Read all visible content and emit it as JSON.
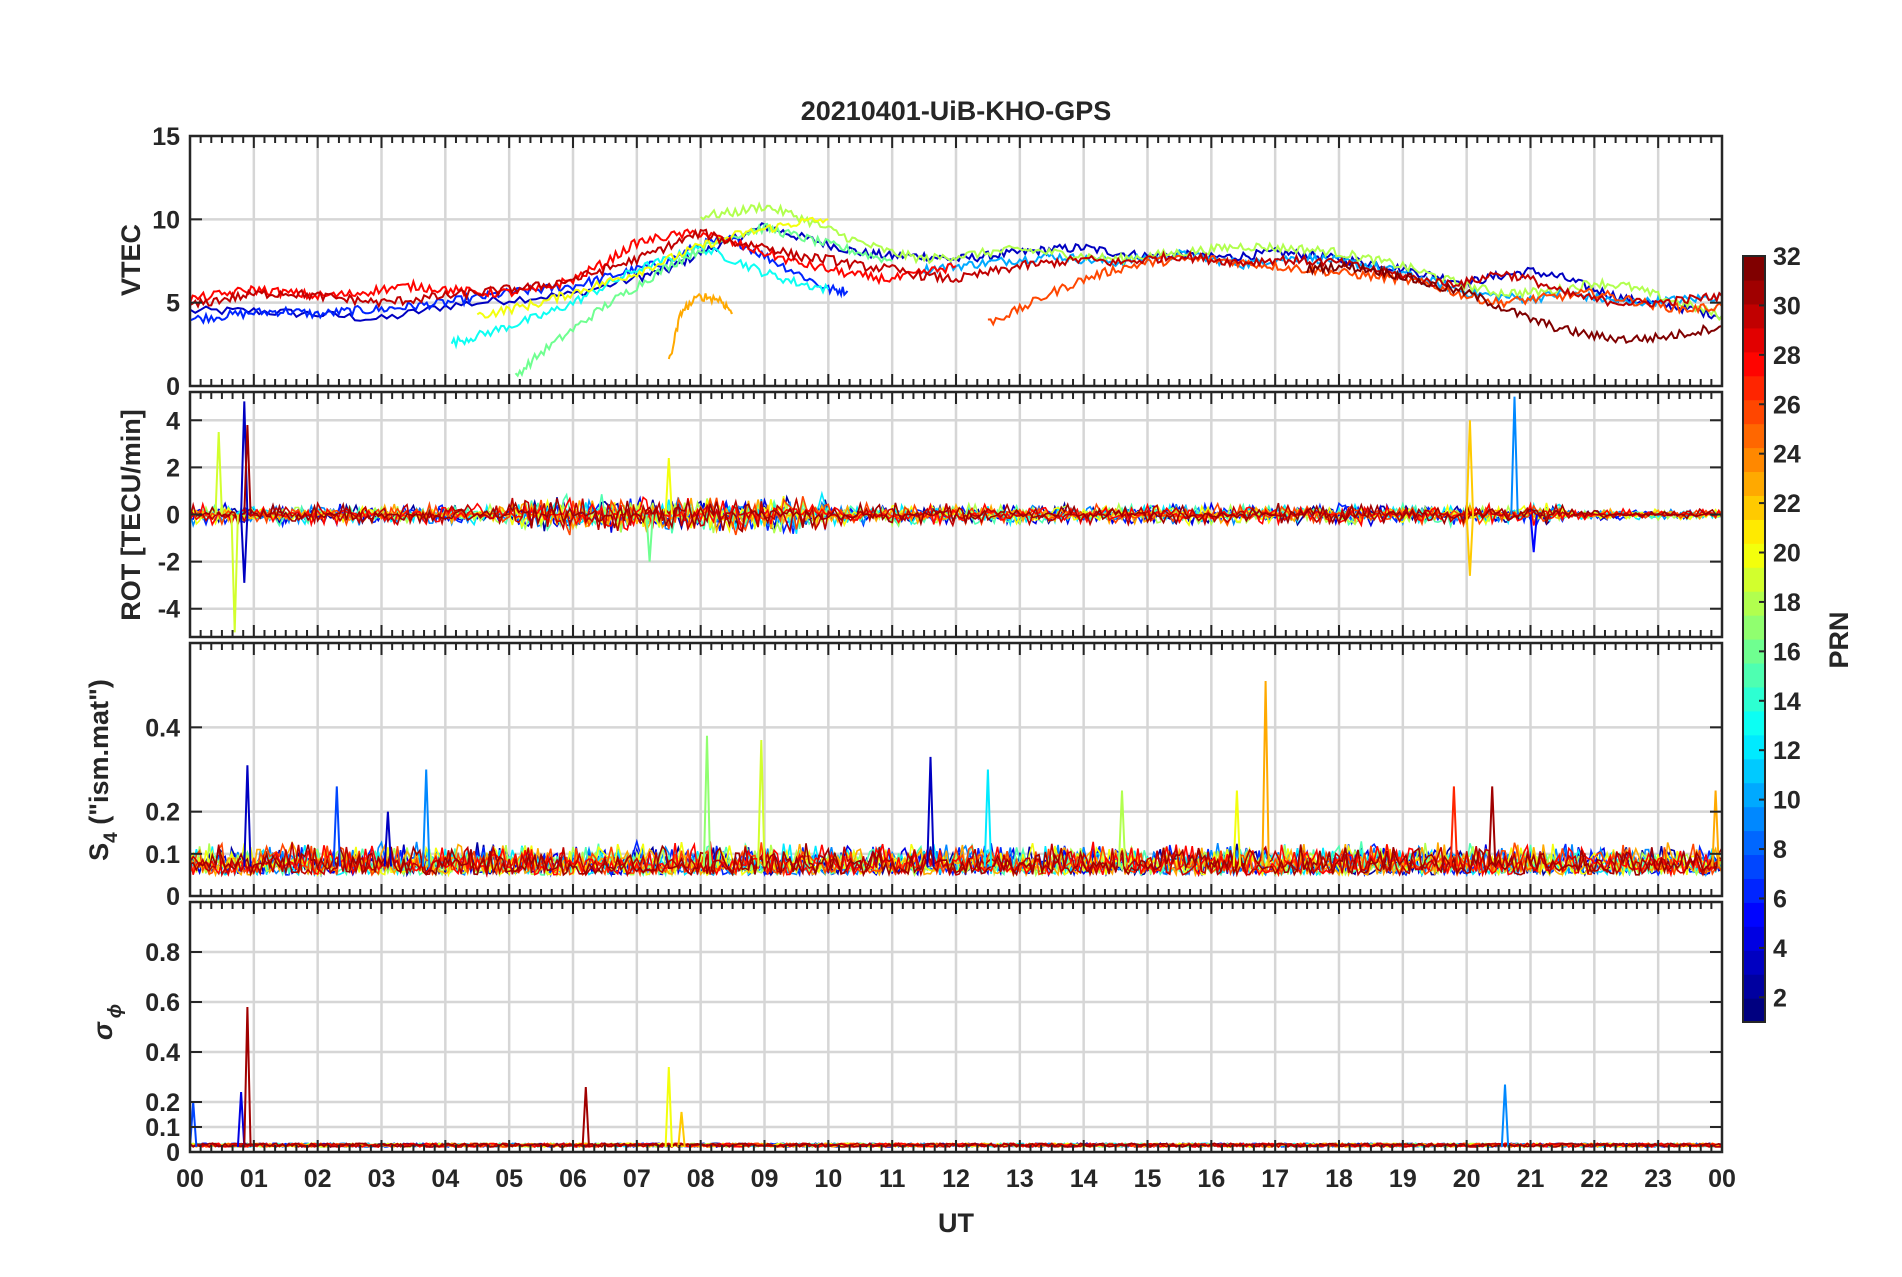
{
  "title": "20210401-UiB-KHO-GPS",
  "x_axis": {
    "label": "UT",
    "tick_labels": [
      "00",
      "01",
      "02",
      "03",
      "04",
      "05",
      "06",
      "07",
      "08",
      "09",
      "10",
      "11",
      "12",
      "13",
      "14",
      "15",
      "16",
      "17",
      "18",
      "19",
      "20",
      "21",
      "22",
      "23",
      "00"
    ]
  },
  "colorbar": {
    "label": "PRN",
    "range": [
      1,
      32
    ],
    "tick_labels": [
      "2",
      "4",
      "6",
      "8",
      "10",
      "12",
      "14",
      "16",
      "18",
      "20",
      "22",
      "24",
      "26",
      "28",
      "30",
      "32"
    ],
    "colormap": "jet"
  },
  "panels": {
    "vtec": {
      "ylabel": "VTEC",
      "ylim": [
        0,
        15
      ],
      "ticks": [
        "0",
        "5",
        "10",
        "15"
      ]
    },
    "rot": {
      "ylabel": "ROT [TECU/min]",
      "ylim": [
        -5.2,
        5.2
      ],
      "ticks": [
        "-4",
        "-2",
        "0",
        "2",
        "4"
      ]
    },
    "s4": {
      "ylabel_main": "S",
      "ylabel_sub": "4",
      "ylabel_rest": " (\"ism.mat\")",
      "ylim": [
        0,
        0.6
      ],
      "ticks": [
        "0",
        "0.1",
        "0.2",
        "0.4"
      ]
    },
    "sigma": {
      "ylabel_main": "σ",
      "ylabel_sub": "ϕ",
      "ylim": [
        0,
        1
      ],
      "ticks": [
        "0",
        "0.1",
        "0.2",
        "0.4",
        "0.6",
        "0.8"
      ]
    }
  },
  "chart_data": [
    {
      "type": "line",
      "title": "20210401-UiB-KHO-GPS",
      "ylabel": "VTEC",
      "xlabel": "UT",
      "xlim": [
        0,
        24
      ],
      "ylim": [
        0,
        15
      ],
      "grid": true,
      "color_by": "PRN",
      "series": [
        {
          "prn": 3,
          "x": [
            0,
            1,
            2,
            3,
            4,
            5,
            6,
            7,
            7.5,
            8,
            8.5,
            9,
            9.5,
            10,
            10.5,
            11,
            11.5,
            12,
            12.5,
            13,
            13.5,
            14,
            14.5,
            15,
            15.5,
            16,
            16.5,
            17,
            17.5,
            18,
            18.5,
            19,
            19.5,
            20,
            20.5,
            21,
            21.5,
            22,
            22.5,
            23,
            23.5,
            24
          ],
          "y": [
            4.5,
            4.5,
            4.3,
            4.0,
            4.8,
            5.2,
            5.5,
            6.5,
            7.0,
            8.0,
            8.8,
            9.6,
            9.0,
            8.5,
            8.0,
            7.8,
            7.8,
            7.6,
            7.8,
            8.0,
            8.2,
            8.3,
            8.0,
            7.8,
            7.9,
            7.7,
            7.8,
            8.0,
            7.9,
            7.6,
            7.4,
            7.0,
            6.6,
            6.2,
            6.6,
            6.9,
            6.5,
            5.8,
            5.2,
            4.9,
            4.6,
            4.2
          ]
        },
        {
          "prn": 6,
          "x": [
            0,
            0.5,
            1,
            1.5,
            2,
            2.5,
            3,
            3.5,
            4,
            4.5,
            5,
            5.5,
            6,
            6.5,
            7,
            7.5,
            8,
            8.5,
            9,
            9.5,
            10,
            10.3
          ],
          "y": [
            4.0,
            4.2,
            4.4,
            4.5,
            4.3,
            4.5,
            4.6,
            4.8,
            5.0,
            5.3,
            5.6,
            5.8,
            6.0,
            6.5,
            7.0,
            7.5,
            8.5,
            8.8,
            7.8,
            6.8,
            5.8,
            5.7
          ]
        },
        {
          "prn": 10,
          "x": [
            11.5,
            12,
            12.5,
            13,
            13.5,
            14,
            14.5,
            15,
            15.5,
            16,
            16.5,
            17,
            17.5,
            18,
            18.5,
            19,
            19.5,
            20,
            20.5,
            21,
            21.5,
            22,
            22.5,
            23,
            23.5,
            24
          ],
          "y": [
            7.0,
            7.2,
            7.4,
            7.6,
            7.8,
            7.6,
            7.4,
            7.7,
            7.9,
            7.6,
            7.3,
            7.6,
            7.7,
            7.5,
            7.2,
            6.8,
            6.2,
            5.6,
            5.4,
            5.2,
            5.6,
            5.3,
            5.0,
            5.1,
            5.2,
            5.4
          ]
        },
        {
          "prn": 13,
          "x": [
            4.1,
            4.5,
            5,
            5.5,
            6,
            6.5,
            7,
            7.5,
            8,
            8.5,
            9,
            9.5,
            10
          ],
          "y": [
            2.6,
            3.0,
            3.6,
            4.2,
            5.0,
            6.0,
            7.0,
            7.6,
            8.3,
            7.6,
            6.8,
            6.2,
            5.8
          ]
        },
        {
          "prn": 16,
          "x": [
            5.1,
            5.5,
            6,
            6.5,
            7,
            7.5,
            8,
            8.5,
            9,
            9.5,
            10,
            10.5,
            11
          ],
          "y": [
            0.6,
            2.0,
            3.4,
            4.8,
            6.0,
            7.2,
            8.2,
            9.0,
            9.5,
            9.0,
            8.5,
            8.0,
            7.5
          ]
        },
        {
          "prn": 18,
          "x": [
            8,
            8.5,
            9,
            9.5,
            10,
            10.5,
            11,
            11.5,
            12,
            12.5,
            13,
            13.5,
            14,
            14.5,
            15,
            15.5,
            16,
            16.5,
            17,
            17.5,
            18,
            18.5,
            19,
            19.5,
            20,
            20.5,
            21,
            21.5,
            22,
            22.5,
            23,
            23.5,
            24
          ],
          "y": [
            10.2,
            10.4,
            10.8,
            10.2,
            9.4,
            8.6,
            8.0,
            7.6,
            7.8,
            8.0,
            8.2,
            8.0,
            7.8,
            7.6,
            7.8,
            8.0,
            8.2,
            8.4,
            8.3,
            8.2,
            8.0,
            7.6,
            7.2,
            6.6,
            6.0,
            5.6,
            5.6,
            5.8,
            6.2,
            6.0,
            5.4,
            4.8,
            4.2
          ]
        },
        {
          "prn": 20,
          "x": [
            4.5,
            5,
            5.5,
            6,
            6.5,
            7,
            7.5,
            8,
            8.5,
            9,
            9.5,
            10
          ],
          "y": [
            4.2,
            4.6,
            5.0,
            5.6,
            6.2,
            6.8,
            7.6,
            8.4,
            9.0,
            9.4,
            9.8,
            10.0
          ]
        },
        {
          "prn": 23,
          "x": [
            7.5,
            7.7,
            8,
            8.3,
            8.5
          ],
          "y": [
            1.4,
            4.5,
            5.4,
            5.2,
            4.4
          ]
        },
        {
          "prn": 26,
          "x": [
            12.5,
            13,
            13.5,
            14,
            14.5,
            15,
            15.5,
            16,
            16.5,
            17,
            17.5,
            18,
            18.5,
            19,
            19.5,
            20,
            20.5,
            21,
            21.5,
            22,
            22.5,
            23,
            23.5,
            24
          ],
          "y": [
            3.8,
            4.6,
            5.6,
            6.4,
            7.0,
            7.4,
            7.6,
            7.6,
            7.4,
            7.2,
            7.0,
            6.8,
            6.6,
            6.4,
            6.0,
            5.4,
            5.0,
            5.2,
            5.4,
            5.6,
            5.2,
            4.8,
            4.6,
            4.8
          ]
        },
        {
          "prn": 28,
          "x": [
            0,
            0.5,
            1,
            1.5,
            2,
            2.5,
            3,
            3.5,
            4,
            4.5,
            5,
            5.5,
            6,
            6.5,
            7,
            7.5,
            8,
            8.5,
            9,
            9.5,
            10,
            10.5,
            11,
            11.5,
            12
          ],
          "y": [
            5.2,
            5.5,
            5.8,
            5.6,
            5.4,
            5.5,
            5.8,
            6.0,
            5.8,
            5.6,
            5.6,
            5.8,
            6.4,
            7.4,
            8.6,
            9.0,
            9.2,
            8.6,
            8.0,
            7.4,
            7.0,
            6.6,
            6.4,
            6.8,
            7.2
          ]
        },
        {
          "prn": 30,
          "x": [
            0,
            0.5,
            1,
            1.5,
            2,
            2.5,
            3,
            3.5,
            4,
            4.5,
            5,
            5.5,
            6,
            6.5,
            7,
            7.5,
            8,
            8.5,
            9,
            9.5,
            10,
            10.5,
            11,
            11.5,
            12,
            12.5,
            13,
            13.5,
            14,
            14.5,
            15,
            15.5,
            16,
            16.5,
            17,
            17.5,
            18,
            18.5,
            19,
            19.5,
            20,
            20.5,
            21,
            21.5,
            22,
            22.5,
            23,
            23.5,
            24
          ],
          "y": [
            4.8,
            5.2,
            5.5,
            5.6,
            5.4,
            5.2,
            5.0,
            5.2,
            5.4,
            5.6,
            5.8,
            6.0,
            6.4,
            7.0,
            7.6,
            8.4,
            9.2,
            8.6,
            8.4,
            7.8,
            7.6,
            7.2,
            7.0,
            6.6,
            6.4,
            6.8,
            7.2,
            7.4,
            7.6,
            7.4,
            7.6,
            7.8,
            7.6,
            7.4,
            7.6,
            7.5,
            7.4,
            7.0,
            6.6,
            6.2,
            6.2,
            6.8,
            6.4,
            5.6,
            5.2,
            5.0,
            5.0,
            5.2,
            5.4
          ]
        },
        {
          "prn": 32,
          "x": [
            17.5,
            18,
            18.5,
            19,
            19.5,
            20,
            20.5,
            21,
            21.5,
            22,
            22.5,
            23,
            23.5,
            24
          ],
          "y": [
            7.0,
            7.2,
            7.0,
            6.6,
            6.0,
            5.6,
            4.8,
            4.0,
            3.4,
            3.0,
            2.8,
            2.9,
            3.2,
            3.6
          ]
        }
      ]
    },
    {
      "type": "line",
      "ylabel": "ROT [TECU/min]",
      "xlim": [
        0,
        24
      ],
      "ylim": [
        -5.2,
        5.2
      ],
      "grid": true,
      "color_by": "PRN",
      "baseline": 0,
      "typical_amplitude": 0.5,
      "peaks": [
        {
          "x": 0.7,
          "y": -5.0,
          "prn": 19
        },
        {
          "x": 0.85,
          "y": 4.8,
          "prn": 3
        },
        {
          "x": 0.85,
          "y": -2.9,
          "prn": 3
        },
        {
          "x": 0.9,
          "y": 3.8,
          "prn": 31
        },
        {
          "x": 0.45,
          "y": 3.5,
          "prn": 19
        },
        {
          "x": 7.5,
          "y": 2.4,
          "prn": 20
        },
        {
          "x": 7.2,
          "y": -2.0,
          "prn": 16
        },
        {
          "x": 20.05,
          "y": 4.0,
          "prn": 22
        },
        {
          "x": 20.05,
          "y": -2.6,
          "prn": 22
        },
        {
          "x": 20.75,
          "y": 5.0,
          "prn": 9
        },
        {
          "x": 21.05,
          "y": -1.6,
          "prn": 5
        }
      ]
    },
    {
      "type": "line",
      "ylabel": "S4 (\"ism.mat\")",
      "xlim": [
        0,
        24
      ],
      "ylim": [
        0,
        0.6
      ],
      "grid": true,
      "color_by": "PRN",
      "baseline": 0.07,
      "peaks": [
        {
          "x": 0.9,
          "y": 0.31,
          "prn": 3
        },
        {
          "x": 2.3,
          "y": 0.26,
          "prn": 7
        },
        {
          "x": 3.1,
          "y": 0.2,
          "prn": 3
        },
        {
          "x": 3.7,
          "y": 0.3,
          "prn": 9
        },
        {
          "x": 8.1,
          "y": 0.38,
          "prn": 17
        },
        {
          "x": 8.95,
          "y": 0.37,
          "prn": 19
        },
        {
          "x": 11.6,
          "y": 0.33,
          "prn": 3
        },
        {
          "x": 12.5,
          "y": 0.3,
          "prn": 12
        },
        {
          "x": 14.6,
          "y": 0.25,
          "prn": 18
        },
        {
          "x": 16.4,
          "y": 0.25,
          "prn": 20
        },
        {
          "x": 16.85,
          "y": 0.51,
          "prn": 23
        },
        {
          "x": 19.8,
          "y": 0.26,
          "prn": 27
        },
        {
          "x": 20.4,
          "y": 0.26,
          "prn": 31
        },
        {
          "x": 23.9,
          "y": 0.25,
          "prn": 23
        }
      ]
    },
    {
      "type": "line",
      "ylabel": "σϕ",
      "xlim": [
        0,
        24
      ],
      "ylim": [
        0,
        1
      ],
      "grid": true,
      "color_by": "PRN",
      "baseline": 0.02,
      "peaks": [
        {
          "x": 0.05,
          "y": 0.2,
          "prn": 7
        },
        {
          "x": 0.8,
          "y": 0.24,
          "prn": 4
        },
        {
          "x": 0.9,
          "y": 0.58,
          "prn": 31
        },
        {
          "x": 6.2,
          "y": 0.26,
          "prn": 31
        },
        {
          "x": 7.5,
          "y": 0.34,
          "prn": 20
        },
        {
          "x": 7.7,
          "y": 0.16,
          "prn": 22
        },
        {
          "x": 20.6,
          "y": 0.27,
          "prn": 9
        }
      ]
    }
  ]
}
